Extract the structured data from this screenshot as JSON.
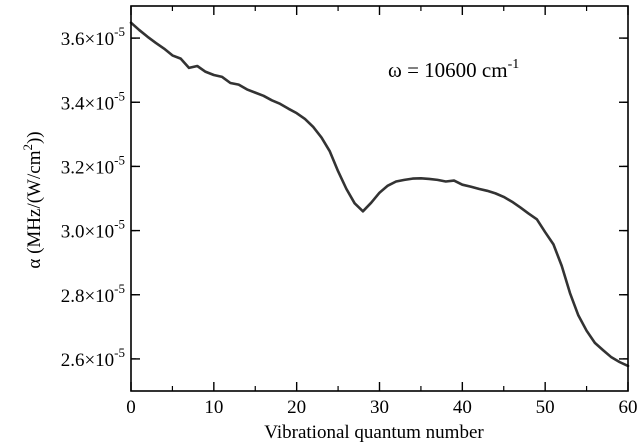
{
  "chart_data": {
    "type": "line",
    "xlabel": "Vibrational quantum number",
    "ylabel": "α (MHz/(W/cm²))",
    "ylabel_parts": {
      "main": "α (MHz/(W/cm",
      "sup": "2",
      "tail": "))"
    },
    "annotation": {
      "prefix": "ω = 10600 cm",
      "sup": "-1",
      "position": "top-right"
    },
    "xlim": [
      0,
      60
    ],
    "ylim": [
      2.5e-05,
      3.7e-05
    ],
    "x_ticks": [
      {
        "value": 0,
        "label": "0"
      },
      {
        "value": 10,
        "label": "10"
      },
      {
        "value": 20,
        "label": "20"
      },
      {
        "value": 30,
        "label": "30"
      },
      {
        "value": 40,
        "label": "40"
      },
      {
        "value": 50,
        "label": "50"
      },
      {
        "value": 60,
        "label": "60"
      }
    ],
    "y_ticks": [
      {
        "value": 2.6e-05,
        "mantissa": "2.6×10",
        "exp": "-5"
      },
      {
        "value": 2.8e-05,
        "mantissa": "2.8×10",
        "exp": "-5"
      },
      {
        "value": 3e-05,
        "mantissa": "3.0×10",
        "exp": "-5"
      },
      {
        "value": 3.2e-05,
        "mantissa": "3.2×10",
        "exp": "-5"
      },
      {
        "value": 3.4e-05,
        "mantissa": "3.4×10",
        "exp": "-5"
      },
      {
        "value": 3.6e-05,
        "mantissa": "3.6×10",
        "exp": "-5"
      }
    ],
    "grid": false,
    "series": [
      {
        "color": "#333333",
        "points": [
          [
            0,
            3.648e-05
          ],
          [
            1,
            3.625e-05
          ],
          [
            2,
            3.604e-05
          ],
          [
            3,
            3.585e-05
          ],
          [
            4,
            3.567e-05
          ],
          [
            5,
            3.546e-05
          ],
          [
            6,
            3.536e-05
          ],
          [
            7,
            3.507e-05
          ],
          [
            8,
            3.513e-05
          ],
          [
            9,
            3.495e-05
          ],
          [
            10,
            3.485e-05
          ],
          [
            11,
            3.479e-05
          ],
          [
            12,
            3.46e-05
          ],
          [
            13,
            3.455e-05
          ],
          [
            14,
            3.44e-05
          ],
          [
            15,
            3.43e-05
          ],
          [
            16,
            3.42e-05
          ],
          [
            17,
            3.406e-05
          ],
          [
            18,
            3.395e-05
          ],
          [
            19,
            3.38e-05
          ],
          [
            20,
            3.366e-05
          ],
          [
            21,
            3.348e-05
          ],
          [
            22,
            3.323e-05
          ],
          [
            23,
            3.29e-05
          ],
          [
            24,
            3.247e-05
          ],
          [
            25,
            3.185e-05
          ],
          [
            26,
            3.13e-05
          ],
          [
            27,
            3.085e-05
          ],
          [
            28,
            3.06e-05
          ],
          [
            29,
            3.087e-05
          ],
          [
            30,
            3.118e-05
          ],
          [
            31,
            3.14e-05
          ],
          [
            32,
            3.153e-05
          ],
          [
            33,
            3.158e-05
          ],
          [
            34,
            3.162e-05
          ],
          [
            35,
            3.163e-05
          ],
          [
            36,
            3.161e-05
          ],
          [
            37,
            3.158e-05
          ],
          [
            38,
            3.153e-05
          ],
          [
            39,
            3.156e-05
          ],
          [
            40,
            3.143e-05
          ],
          [
            41,
            3.137e-05
          ],
          [
            42,
            3.13e-05
          ],
          [
            43,
            3.124e-05
          ],
          [
            44,
            3.116e-05
          ],
          [
            45,
            3.105e-05
          ],
          [
            46,
            3.09e-05
          ],
          [
            47,
            3.072e-05
          ],
          [
            48,
            3.053e-05
          ],
          [
            49,
            3.035e-05
          ],
          [
            50,
            2.995e-05
          ],
          [
            51,
            2.957e-05
          ],
          [
            52,
            2.89e-05
          ],
          [
            53,
            2.805e-05
          ],
          [
            54,
            2.736e-05
          ],
          [
            55,
            2.688e-05
          ],
          [
            56,
            2.65e-05
          ],
          [
            57,
            2.627e-05
          ],
          [
            58,
            2.605e-05
          ],
          [
            59,
            2.59e-05
          ],
          [
            60,
            2.578e-05
          ]
        ]
      }
    ]
  }
}
